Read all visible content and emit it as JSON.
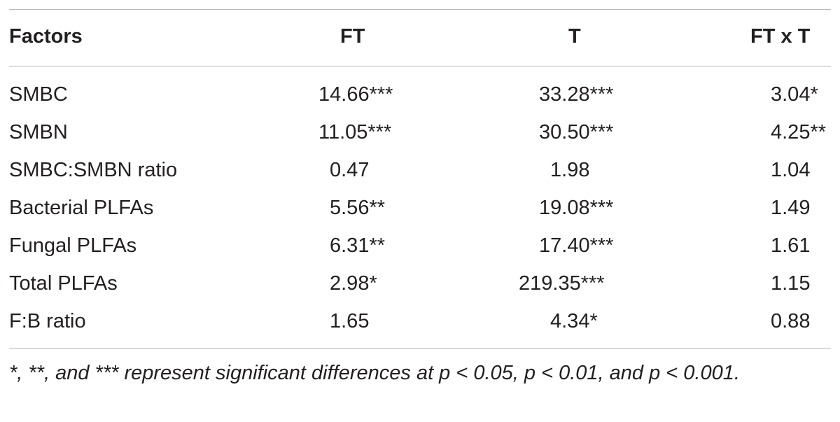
{
  "table": {
    "headers": {
      "factors": "Factors",
      "ft": "FT",
      "t": "T",
      "ft_x_t": "FT x T"
    },
    "rows": [
      {
        "factor": "SMBC",
        "ft": "14.66***",
        "t": "33.28***",
        "ft_x_t": "3.04*"
      },
      {
        "factor": "SMBN",
        "ft": "11.05***",
        "t": "30.50***",
        "ft_x_t": "4.25**"
      },
      {
        "factor": "SMBC:SMBN ratio",
        "ft": "0.47",
        "t": "1.98",
        "ft_x_t": "1.04"
      },
      {
        "factor": "Bacterial PLFAs",
        "ft": "5.56**",
        "t": "19.08***",
        "ft_x_t": "1.49"
      },
      {
        "factor": "Fungal PLFAs",
        "ft": "6.31**",
        "t": "17.40***",
        "ft_x_t": "1.61"
      },
      {
        "factor": "Total PLFAs",
        "ft": "2.98*",
        "t": "219.35***",
        "ft_x_t": "1.15"
      },
      {
        "factor": "F:B ratio",
        "ft": "1.65",
        "t": "4.34*",
        "ft_x_t": "0.88"
      }
    ]
  },
  "footnote": "*, **, and *** represent significant differences at p < 0.05, p < 0.01, and p < 0.001."
}
